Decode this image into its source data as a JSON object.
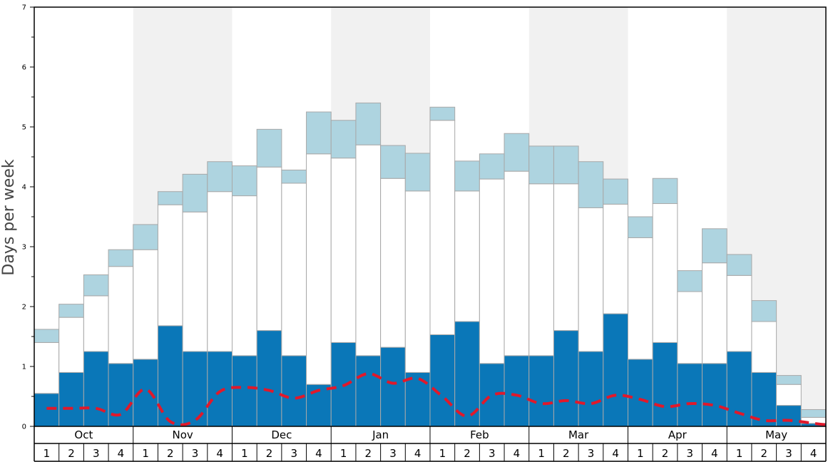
{
  "chart_data": {
    "type": "bar",
    "ylabel": "Days per week",
    "ylim": [
      0,
      7
    ],
    "yticks": [
      0,
      1,
      2,
      3,
      4,
      5,
      6,
      7
    ],
    "months": [
      "Oct",
      "Nov",
      "Dec",
      "Jan",
      "Feb",
      "Mar",
      "Apr",
      "May"
    ],
    "weeks_per_month": [
      "1",
      "2",
      "3",
      "4"
    ],
    "colors": {
      "bottom": "#0a77b8",
      "middle": "#ffffff",
      "top": "#aed4e0",
      "line": "#e0192b",
      "shade": "#f1f1f1",
      "bar_border": "#a8a8a8"
    },
    "series": [
      {
        "values": [
          0.55,
          0.9,
          1.25,
          1.05,
          1.12,
          1.68,
          1.25,
          1.25,
          1.18,
          1.6,
          1.18,
          0.7,
          1.4,
          1.18,
          1.32,
          0.9,
          1.53,
          1.75,
          1.05,
          1.18,
          1.18,
          1.6,
          1.25,
          1.88,
          1.12,
          1.4,
          1.05,
          1.05,
          1.25,
          0.9,
          0.35,
          0.05
        ]
      },
      {
        "values": [
          0.85,
          0.92,
          0.93,
          1.62,
          1.83,
          2.02,
          2.33,
          2.67,
          2.67,
          2.73,
          2.88,
          3.85,
          3.08,
          3.52,
          2.82,
          3.03,
          3.58,
          2.18,
          3.08,
          3.08,
          2.87,
          2.45,
          2.4,
          1.83,
          2.03,
          2.32,
          1.2,
          1.68,
          1.27,
          0.85,
          0.35,
          0.1
        ]
      },
      {
        "values": [
          0.22,
          0.22,
          0.35,
          0.28,
          0.42,
          0.22,
          0.63,
          0.5,
          0.5,
          0.63,
          0.22,
          0.7,
          0.63,
          0.7,
          0.55,
          0.63,
          0.22,
          0.5,
          0.42,
          0.63,
          0.63,
          0.63,
          0.77,
          0.42,
          0.35,
          0.42,
          0.35,
          0.57,
          0.35,
          0.35,
          0.15,
          0.13
        ]
      }
    ],
    "line": {
      "values": [
        0.3,
        0.3,
        0.3,
        0.2,
        0.62,
        0.08,
        0.1,
        0.58,
        0.65,
        0.6,
        0.47,
        0.6,
        0.68,
        0.88,
        0.72,
        0.8,
        0.5,
        0.17,
        0.52,
        0.52,
        0.38,
        0.43,
        0.38,
        0.52,
        0.45,
        0.33,
        0.38,
        0.35,
        0.22,
        0.1,
        0.1,
        0.05
      ]
    }
  }
}
